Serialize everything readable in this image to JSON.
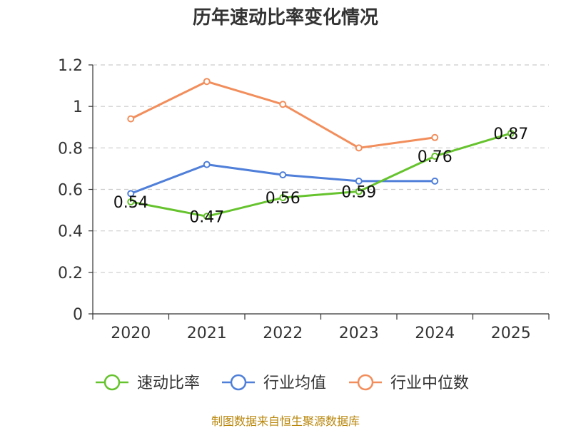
{
  "chart_data": {
    "type": "line",
    "title": "历年速动比率变化情况",
    "categories": [
      "2020",
      "2021",
      "2022",
      "2023",
      "2024",
      "2025"
    ],
    "ylim": [
      0,
      1.2
    ],
    "yticks": [
      "0",
      "0.2",
      "0.4",
      "0.6",
      "0.8",
      "1",
      "1.2"
    ],
    "grid": true,
    "legend_position": "bottom",
    "series": [
      {
        "name": "速动比率",
        "color": "#66c32e",
        "values": [
          0.54,
          0.47,
          0.56,
          0.59,
          0.76,
          0.87
        ],
        "labels": [
          "0.54",
          "0.47",
          "0.56",
          "0.59",
          "0.76",
          "0.87"
        ]
      },
      {
        "name": "行业均值",
        "color": "#4f7fd9",
        "values": [
          0.58,
          0.72,
          0.67,
          0.64,
          0.64,
          null
        ]
      },
      {
        "name": "行业中位数",
        "color": "#f28e5c",
        "values": [
          0.94,
          1.12,
          1.01,
          0.8,
          0.85,
          null
        ]
      }
    ]
  },
  "footer": {
    "source": "制图数据来自恒生聚源数据库"
  }
}
